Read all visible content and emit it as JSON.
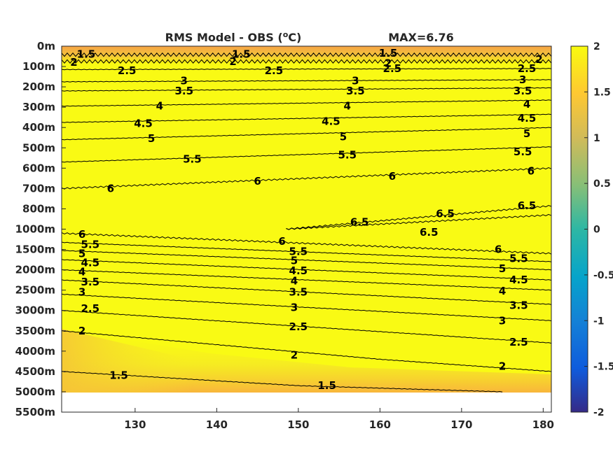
{
  "chart_data": {
    "type": "contour",
    "title": "RMS Model - OBS (",
    "title_unit": "o",
    "title_unit_suffix": "C)",
    "max_label": "MAX=6.76",
    "x_ticks": [
      130,
      140,
      150,
      160,
      170,
      180
    ],
    "x_tick_labels": [
      "130",
      "140",
      "150",
      "160",
      "170",
      "180"
    ],
    "xlim": [
      121,
      181
    ],
    "y_tick_labels": [
      "0m",
      "100m",
      "200m",
      "300m",
      "400m",
      "500m",
      "600m",
      "700m",
      "800m",
      "1000m",
      "1500m",
      "2000m",
      "2500m",
      "3000m",
      "3500m",
      "4000m",
      "4500m",
      "5000m",
      "5500m"
    ],
    "y_scale": "nonlinear depth index (labels as printed)",
    "colorbar": {
      "ticks": [
        2,
        1.5,
        1,
        0.5,
        0,
        -0.5,
        -1,
        -1.5,
        -2
      ],
      "tick_labels": [
        "2",
        "1.5",
        "1",
        "0.5",
        "0",
        "-0.5",
        "-1",
        "-1.5",
        "-2"
      ],
      "clim": [
        -2,
        2
      ],
      "colormap": "parula"
    },
    "contour_levels": [
      1.5,
      2,
      2.5,
      3,
      3.5,
      4,
      4.5,
      5,
      5.5,
      6,
      6.5
    ],
    "contours": [
      {
        "level": 1.5,
        "label": "1.5",
        "points": [
          [
            121,
            0.42
          ],
          [
            181,
            0.42
          ]
        ]
      },
      {
        "level": 2,
        "label": "2",
        "points": [
          [
            121,
            0.75
          ],
          [
            181,
            0.75
          ]
        ]
      },
      {
        "level": 2.5,
        "label": "2.5",
        "points": [
          [
            121,
            1.15
          ],
          [
            181,
            1.1
          ]
        ]
      },
      {
        "level": 3,
        "label": "3",
        "points": [
          [
            121,
            1.75
          ],
          [
            181,
            1.65
          ]
        ]
      },
      {
        "level": 3.5,
        "label": "3.5",
        "points": [
          [
            121,
            2.2
          ],
          [
            181,
            2.05
          ]
        ]
      },
      {
        "level": 4,
        "label": "4",
        "points": [
          [
            121,
            2.95
          ],
          [
            181,
            2.65
          ]
        ]
      },
      {
        "level": 4.5,
        "label": "4.5",
        "points": [
          [
            121,
            3.75
          ],
          [
            181,
            3.35
          ]
        ]
      },
      {
        "level": 5,
        "label": "5",
        "points": [
          [
            121,
            4.6
          ],
          [
            181,
            4.0
          ]
        ]
      },
      {
        "level": 5.5,
        "label": "5.5",
        "points": [
          [
            121,
            5.7
          ],
          [
            181,
            4.95
          ]
        ]
      },
      {
        "level": 6,
        "label": "6",
        "points": [
          [
            121,
            7.0
          ],
          [
            181,
            6.0
          ]
        ]
      },
      {
        "level": 6.5,
        "label": "6.5",
        "points": [
          [
            148.5,
            9.0
          ],
          [
            181,
            7.85
          ]
        ]
      },
      {
        "level": 6.5,
        "label": "6.5",
        "points": [
          [
            148.5,
            9.0
          ],
          [
            181,
            8.3
          ]
        ]
      },
      {
        "level": 6,
        "label": "6",
        "points": [
          [
            121,
            9.2
          ],
          [
            181,
            10.2
          ]
        ]
      },
      {
        "level": 5.5,
        "label": "5.5",
        "points": [
          [
            121,
            9.65
          ],
          [
            181,
            10.6
          ]
        ]
      },
      {
        "level": 5,
        "label": "5",
        "points": [
          [
            121,
            10.05
          ],
          [
            181,
            11.0
          ]
        ]
      },
      {
        "level": 4.5,
        "label": "4.5",
        "points": [
          [
            121,
            10.5
          ],
          [
            181,
            11.5
          ]
        ]
      },
      {
        "level": 4,
        "label": "4",
        "points": [
          [
            121,
            11.0
          ],
          [
            181,
            12.0
          ]
        ]
      },
      {
        "level": 3.5,
        "label": "3.5",
        "points": [
          [
            121,
            11.5
          ],
          [
            181,
            12.7
          ]
        ]
      },
      {
        "level": 3,
        "label": "3",
        "points": [
          [
            121,
            12.2
          ],
          [
            181,
            13.5
          ]
        ]
      },
      {
        "level": 2.5,
        "label": "2.5",
        "points": [
          [
            121,
            13.0
          ],
          [
            181,
            14.6
          ]
        ]
      },
      {
        "level": 2,
        "label": "2",
        "points": [
          [
            121,
            14.0
          ],
          [
            160,
            15.4
          ],
          [
            181,
            16.0
          ]
        ]
      },
      {
        "level": 1.5,
        "label": "1.5",
        "points": [
          [
            121,
            16.0
          ],
          [
            150,
            16.7
          ],
          [
            175,
            17.0
          ]
        ]
      }
    ],
    "inline_labels": [
      {
        "text": "1.5",
        "x": 124,
        "y": 0.4
      },
      {
        "text": "1.5",
        "x": 143,
        "y": 0.4
      },
      {
        "text": "1.5",
        "x": 161,
        "y": 0.35
      },
      {
        "text": "2",
        "x": 122.5,
        "y": 0.8
      },
      {
        "text": "2",
        "x": 142,
        "y": 0.75
      },
      {
        "text": "2",
        "x": 161,
        "y": 0.85
      },
      {
        "text": "2",
        "x": 179.5,
        "y": 0.65
      },
      {
        "text": "2.5",
        "x": 129,
        "y": 1.2
      },
      {
        "text": "2.5",
        "x": 147,
        "y": 1.2
      },
      {
        "text": "2.5",
        "x": 161.5,
        "y": 1.1
      },
      {
        "text": "2.5",
        "x": 178,
        "y": 1.1
      },
      {
        "text": "3",
        "x": 136,
        "y": 1.7
      },
      {
        "text": "3",
        "x": 157,
        "y": 1.7
      },
      {
        "text": "3",
        "x": 177.5,
        "y": 1.65
      },
      {
        "text": "3.5",
        "x": 136,
        "y": 2.2
      },
      {
        "text": "3.5",
        "x": 157,
        "y": 2.2
      },
      {
        "text": "3.5",
        "x": 177.5,
        "y": 2.2
      },
      {
        "text": "4",
        "x": 133,
        "y": 2.95
      },
      {
        "text": "4",
        "x": 156,
        "y": 2.95
      },
      {
        "text": "4",
        "x": 178,
        "y": 2.85
      },
      {
        "text": "4.5",
        "x": 131,
        "y": 3.8
      },
      {
        "text": "4.5",
        "x": 154,
        "y": 3.7
      },
      {
        "text": "4.5",
        "x": 178,
        "y": 3.55
      },
      {
        "text": "5",
        "x": 132,
        "y": 4.55
      },
      {
        "text": "5",
        "x": 155.5,
        "y": 4.45
      },
      {
        "text": "5",
        "x": 178,
        "y": 4.3
      },
      {
        "text": "5.5",
        "x": 137,
        "y": 5.55
      },
      {
        "text": "5.5",
        "x": 156,
        "y": 5.35
      },
      {
        "text": "5.5",
        "x": 177.5,
        "y": 5.2
      },
      {
        "text": "6",
        "x": 127,
        "y": 7.0
      },
      {
        "text": "6",
        "x": 145,
        "y": 6.65
      },
      {
        "text": "6",
        "x": 161.5,
        "y": 6.4
      },
      {
        "text": "6",
        "x": 178.5,
        "y": 6.15
      },
      {
        "text": "6.5",
        "x": 168,
        "y": 8.25
      },
      {
        "text": "6.5",
        "x": 157.5,
        "y": 8.65
      },
      {
        "text": "6.5",
        "x": 178,
        "y": 7.85
      },
      {
        "text": "6.5",
        "x": 166,
        "y": 9.15
      },
      {
        "text": "6",
        "x": 123.5,
        "y": 9.25
      },
      {
        "text": "6",
        "x": 148,
        "y": 9.6
      },
      {
        "text": "6",
        "x": 174.5,
        "y": 10.0
      },
      {
        "text": "5.5",
        "x": 124.5,
        "y": 9.75
      },
      {
        "text": "5.5",
        "x": 150,
        "y": 10.1
      },
      {
        "text": "5.5",
        "x": 177,
        "y": 10.45
      },
      {
        "text": "5",
        "x": 123.5,
        "y": 10.2
      },
      {
        "text": "5",
        "x": 149.5,
        "y": 10.55
      },
      {
        "text": "5",
        "x": 175,
        "y": 10.95
      },
      {
        "text": "4.5",
        "x": 124.5,
        "y": 10.65
      },
      {
        "text": "4.5",
        "x": 150,
        "y": 11.05
      },
      {
        "text": "4.5",
        "x": 177,
        "y": 11.5
      },
      {
        "text": "4",
        "x": 123.5,
        "y": 11.1
      },
      {
        "text": "4",
        "x": 149.5,
        "y": 11.55
      },
      {
        "text": "4",
        "x": 175,
        "y": 12.05
      },
      {
        "text": "3.5",
        "x": 124.5,
        "y": 11.6
      },
      {
        "text": "3.5",
        "x": 150,
        "y": 12.1
      },
      {
        "text": "3.5",
        "x": 177,
        "y": 12.75
      },
      {
        "text": "3",
        "x": 123.5,
        "y": 12.1
      },
      {
        "text": "3",
        "x": 149.5,
        "y": 12.85
      },
      {
        "text": "3",
        "x": 175,
        "y": 13.5
      },
      {
        "text": "2.5",
        "x": 124.5,
        "y": 12.9
      },
      {
        "text": "2.5",
        "x": 150,
        "y": 13.8
      },
      {
        "text": "2.5",
        "x": 177,
        "y": 14.55
      },
      {
        "text": "2",
        "x": 123.5,
        "y": 14.0
      },
      {
        "text": "2",
        "x": 149.5,
        "y": 15.2
      },
      {
        "text": "2",
        "x": 175,
        "y": 15.75
      },
      {
        "text": "1.5",
        "x": 128,
        "y": 16.2
      },
      {
        "text": "1.5",
        "x": 153.5,
        "y": 16.7
      }
    ],
    "grid": false,
    "legend": "colorbar right"
  }
}
